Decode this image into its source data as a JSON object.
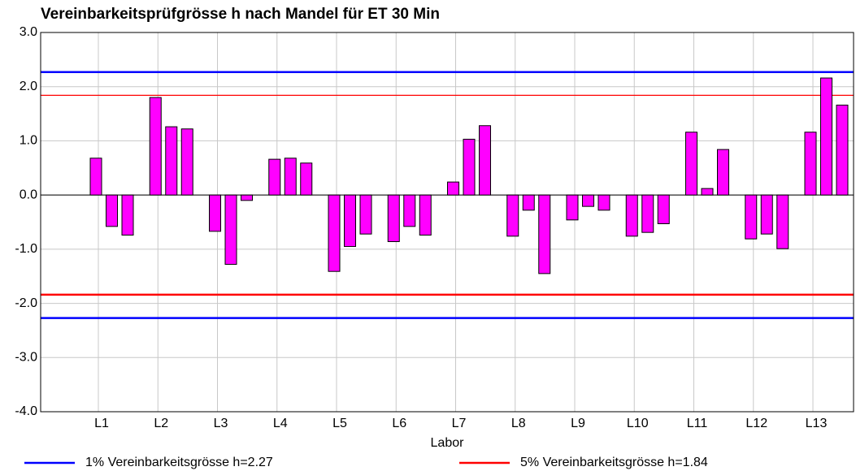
{
  "chart_data": {
    "type": "bar",
    "title": "Vereinbarkeitsprüfgrösse h nach Mandel für ET 30 Min",
    "x_label": "Labor",
    "categories": [
      "L1",
      "L2",
      "L3",
      "L4",
      "L5",
      "L6",
      "L7",
      "L8",
      "L9",
      "L10",
      "L11",
      "L12",
      "L13"
    ],
    "series": [
      {
        "color": "#ff00ff",
        "values": [
          0.68,
          1.8,
          -0.67,
          0.66,
          -1.41,
          -0.86,
          0.24,
          -0.76,
          -0.46,
          -0.76,
          1.16,
          -0.81,
          1.16
        ]
      },
      {
        "color": "#ff00ff",
        "values": [
          -0.58,
          1.26,
          -1.28,
          0.68,
          -0.95,
          -0.58,
          1.03,
          -0.28,
          -0.21,
          -0.69,
          0.12,
          -0.72,
          2.16
        ]
      },
      {
        "color": "#ff00ff",
        "values": [
          -0.74,
          1.22,
          -0.1,
          0.59,
          -0.72,
          -0.74,
          1.28,
          -1.45,
          -0.28,
          -0.53,
          0.84,
          -0.99,
          1.66
        ]
      }
    ],
    "ylim": [
      -4,
      3
    ],
    "yticks": [
      {
        "value": -4,
        "label": "-4.0"
      },
      {
        "value": -3,
        "label": "-3.0"
      },
      {
        "value": -2,
        "label": "-2.0"
      },
      {
        "value": -1,
        "label": "-1.0"
      },
      {
        "value": 0,
        "label": "0.0"
      },
      {
        "value": 1,
        "label": "1.0"
      },
      {
        "value": 2,
        "label": "2.0"
      },
      {
        "value": 3,
        "label": "3.0"
      }
    ],
    "grid": true,
    "reference_lines": [
      {
        "label": "1% Vereinbarkeitsgrösse h=2.27",
        "color": "#0000ff",
        "values": [
          2.27,
          -2.27
        ]
      },
      {
        "label": "5% Vereinbarkeitsgrösse h=1.84",
        "color": "#ff0000",
        "values": [
          1.84,
          -1.84
        ]
      }
    ]
  }
}
